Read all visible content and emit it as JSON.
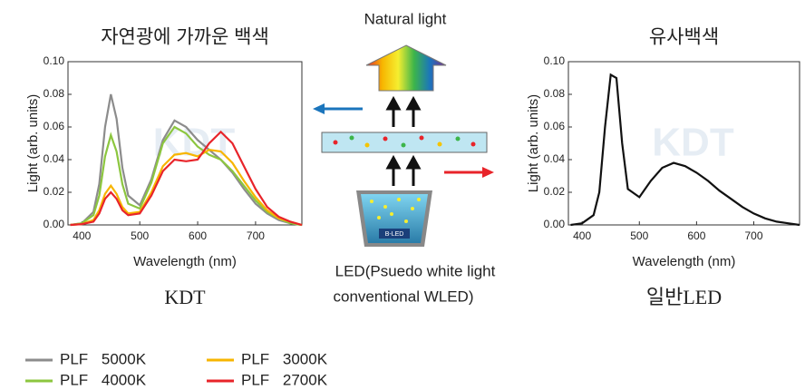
{
  "chart_data": [
    {
      "type": "line",
      "title": "자연광에 가까운 백색",
      "caption": "KDT",
      "watermark": "KDT",
      "x_label": "Wavelength (nm)",
      "y_label": "Light (arb. units)",
      "x": [
        380,
        400,
        420,
        430,
        440,
        450,
        460,
        470,
        480,
        500,
        520,
        540,
        560,
        580,
        600,
        620,
        640,
        660,
        680,
        700,
        720,
        740,
        760,
        780
      ],
      "xlim": [
        376,
        780
      ],
      "xticks": [
        400,
        500,
        600,
        700
      ],
      "ylim": [
        0,
        0.1
      ],
      "yticks": [
        {
          "value": 0,
          "label": "0.00"
        },
        0.02,
        0.04,
        0.06,
        0.08,
        {
          "value": 0.1,
          "label": "0.10"
        }
      ],
      "series": [
        {
          "name": "PLF 5000K",
          "color": "#8c8c8c",
          "values": [
            0,
            0.001,
            0.008,
            0.025,
            0.06,
            0.08,
            0.065,
            0.035,
            0.018,
            0.012,
            0.028,
            0.052,
            0.064,
            0.06,
            0.052,
            0.046,
            0.04,
            0.032,
            0.022,
            0.013,
            0.007,
            0.003,
            0.001,
            0
          ]
        },
        {
          "name": "PLF 4000K",
          "color": "#8cc63f",
          "values": [
            0,
            0.001,
            0.006,
            0.018,
            0.042,
            0.055,
            0.045,
            0.025,
            0.013,
            0.01,
            0.026,
            0.05,
            0.06,
            0.056,
            0.048,
            0.043,
            0.04,
            0.033,
            0.024,
            0.015,
            0.008,
            0.004,
            0.001,
            0
          ]
        },
        {
          "name": "PLF 3000K",
          "color": "#f7b500",
          "values": [
            0,
            0.0005,
            0.003,
            0.009,
            0.019,
            0.024,
            0.019,
            0.011,
            0.007,
            0.008,
            0.02,
            0.036,
            0.043,
            0.044,
            0.042,
            0.046,
            0.045,
            0.038,
            0.027,
            0.017,
            0.009,
            0.004,
            0.002,
            0
          ]
        },
        {
          "name": "PLF 2700K",
          "color": "#e8242a",
          "values": [
            0,
            0.0005,
            0.002,
            0.007,
            0.016,
            0.02,
            0.016,
            0.009,
            0.006,
            0.007,
            0.018,
            0.033,
            0.04,
            0.039,
            0.04,
            0.05,
            0.057,
            0.05,
            0.036,
            0.022,
            0.011,
            0.005,
            0.002,
            0
          ]
        }
      ]
    },
    {
      "type": "line",
      "title": "유사백색",
      "caption": "일반LED",
      "watermark": "KDT",
      "x_label": "Wavelength (nm)",
      "y_label": "Light (arb. units)",
      "x": [
        380,
        400,
        420,
        430,
        440,
        450,
        460,
        470,
        480,
        500,
        520,
        540,
        560,
        580,
        600,
        620,
        640,
        660,
        680,
        700,
        720,
        740,
        760,
        780
      ],
      "xlim": [
        376,
        780
      ],
      "xticks": [
        400,
        500,
        600,
        700
      ],
      "ylim": [
        0,
        0.1
      ],
      "yticks": [
        {
          "value": 0,
          "label": "0.00"
        },
        0.02,
        0.04,
        0.06,
        0.08,
        {
          "value": 0.1,
          "label": "0.10"
        }
      ],
      "color": "#111111",
      "values": [
        0,
        0.001,
        0.006,
        0.02,
        0.06,
        0.092,
        0.09,
        0.05,
        0.022,
        0.017,
        0.027,
        0.035,
        0.038,
        0.036,
        0.032,
        0.027,
        0.021,
        0.016,
        0.011,
        0.007,
        0.004,
        0.002,
        0.001,
        0
      ]
    }
  ],
  "diagram": {
    "top_label": "Natural light",
    "chip_label": "B-LED",
    "bottom_label_1": "LED(Psuedo white light",
    "bottom_label_2": "conventional WLED)"
  }
}
